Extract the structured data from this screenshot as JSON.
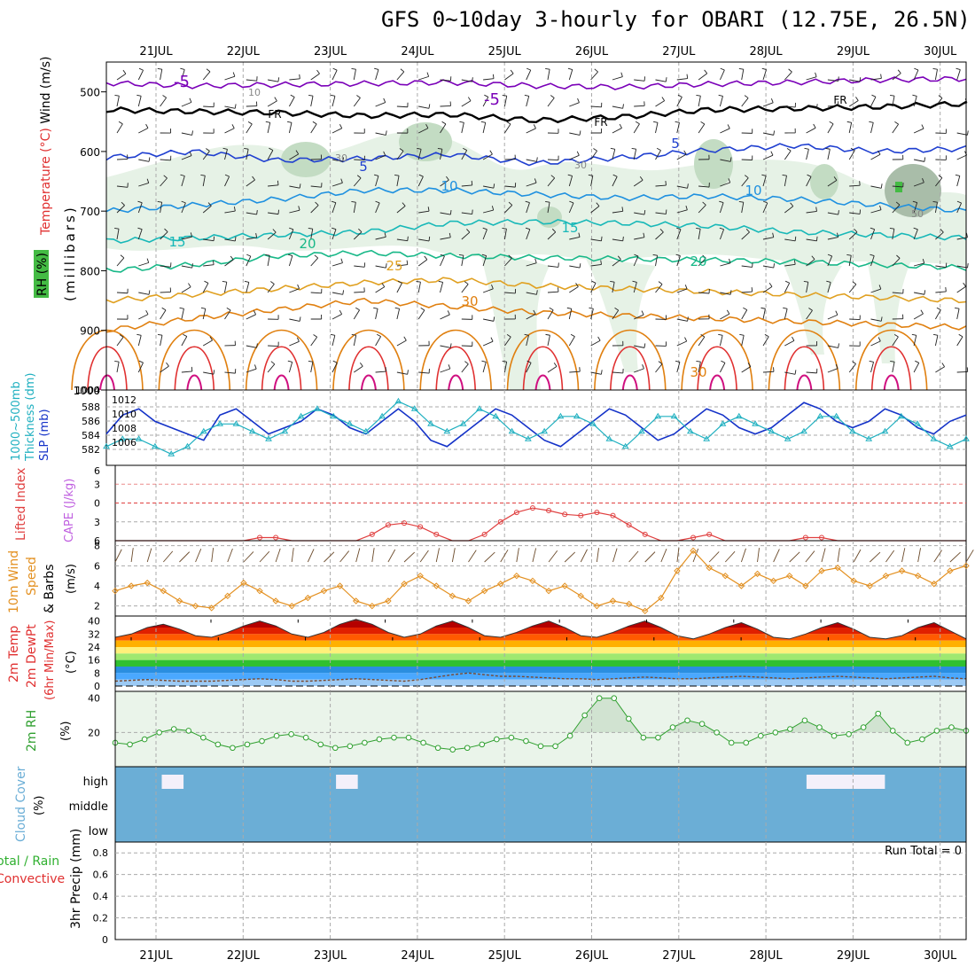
{
  "title": "GFS 0~10day 3-hourly for OBARI (12.75E, 26.5N)",
  "dates": [
    "21JUL",
    "22JUL",
    "23JUL",
    "24JUL",
    "25JUL",
    "26JUL",
    "27JUL",
    "28JUL",
    "29JUL",
    "30JUL"
  ],
  "run_total": "Run Total = 0",
  "colors": {
    "rh_fill_light": "#e6f2e6",
    "rh_fill_mid": "#c3dcc3",
    "rh_fill_dark": "#a9bda9",
    "temp_neg": "#7a00b8",
    "temp_zero": "#000000",
    "temp_5": "#1f3fd0",
    "temp_10": "#1e90e0",
    "temp_15": "#18b8b8",
    "temp_20": "#18b888",
    "temp_25": "#e0a020",
    "temp_30": "#e08010",
    "temp_35": "#e03030",
    "temp_40": "#d01080",
    "slp": "#1432c8",
    "thickness": "#20b0c0",
    "lifted_index": "#e04040",
    "cape": "#c060e0",
    "wind": "#e39020",
    "cloud": "#6baed6",
    "precip_total": "#30b030",
    "precip_conv": "#e03030",
    "rh2m": "#30a030",
    "grid": "#aaaaaa"
  },
  "chart_data": [
    {
      "id": "upper-air",
      "type": "contour",
      "title": "GFS 0~10day 3-hourly for OBARI (12.75E, 26.5N)",
      "ylabel": "(millibars)",
      "side_labels": [
        "Wind (m/s)",
        "Temperature (°C)",
        "RH (%)"
      ],
      "y_ticks": [
        "500",
        "600",
        "700",
        "800",
        "900",
        "1000"
      ],
      "ylim": [
        1000,
        450
      ],
      "temperature_contours": [
        {
          "label": "-5",
          "level_mb": [
            485,
            490,
            488,
            486,
            484,
            490,
            492,
            487,
            484,
            480,
            478
          ]
        },
        {
          "label": "FR",
          "level_mb": [
            530,
            533,
            535,
            540,
            538,
            548,
            542,
            530,
            528,
            525,
            520
          ]
        },
        {
          "label": "5",
          "level_mb": [
            610,
            600,
            615,
            612,
            605,
            620,
            610,
            598,
            590,
            600,
            595
          ]
        },
        {
          "label": "10",
          "level_mb": [
            700,
            690,
            680,
            665,
            665,
            672,
            678,
            675,
            680,
            690,
            700
          ]
        },
        {
          "label": "15",
          "level_mb": [
            750,
            745,
            740,
            735,
            720,
            718,
            720,
            725,
            735,
            740,
            745
          ]
        },
        {
          "label": "20",
          "level_mb": [
            800,
            790,
            775,
            770,
            775,
            778,
            780,
            782,
            785,
            790,
            795
          ]
        },
        {
          "label": "25",
          "level_mb": [
            850,
            840,
            830,
            820,
            815,
            825,
            830,
            835,
            840,
            845,
            850
          ]
        },
        {
          "label": "30",
          "level_mb": [
            900,
            880,
            865,
            850,
            860,
            870,
            875,
            880,
            885,
            890,
            895
          ]
        }
      ],
      "contour_labels": [
        "-5",
        "-5",
        "FR",
        "FR",
        "FR",
        "5",
        "5",
        "10",
        "10",
        "15",
        "15",
        "20",
        "20",
        "25",
        "30",
        "30",
        "10",
        "30",
        "30",
        "50"
      ]
    },
    {
      "id": "slp-thickness",
      "type": "line",
      "left_labels": [
        "1000~500mb",
        "Thickness (dm)"
      ],
      "right_label": "SLP (mb)",
      "y_ticks_left": [
        "588",
        "586",
        "584",
        "582"
      ],
      "y_ticks_right": [
        "1012",
        "1010",
        "1008",
        "1006"
      ],
      "y_top": "1004",
      "series": [
        {
          "name": "SLP (mb)",
          "values": [
            1008,
            1011,
            1012,
            1010,
            1009,
            1008,
            1007,
            1011,
            1012,
            1010,
            1008,
            1009,
            1010,
            1012,
            1011,
            1009,
            1008,
            1010,
            1012,
            1010,
            1007,
            1006,
            1008,
            1010,
            1012,
            1011,
            1009,
            1007,
            1006,
            1008,
            1010,
            1012,
            1011,
            1009,
            1007,
            1008,
            1010,
            1012,
            1011,
            1009,
            1008,
            1009,
            1011,
            1013,
            1012,
            1010,
            1009,
            1010,
            1012,
            1011,
            1009,
            1008,
            1010,
            1011
          ]
        },
        {
          "name": "1000~500mb Thickness (dm)",
          "values": [
            582,
            583,
            583,
            582,
            581,
            582,
            584,
            585,
            585,
            584,
            583,
            584,
            586,
            587,
            586,
            585,
            584,
            586,
            588,
            587,
            585,
            584,
            585,
            587,
            586,
            584,
            583,
            584,
            586,
            586,
            585,
            583,
            582,
            584,
            586,
            586,
            584,
            583,
            585,
            586,
            585,
            584,
            583,
            584,
            586,
            586,
            584,
            583,
            584,
            586,
            585,
            583,
            582,
            583
          ]
        }
      ]
    },
    {
      "id": "stability",
      "type": "line",
      "left_labels": [
        "Lifted Index",
        "CAPE (J/kg)"
      ],
      "y_ticks": [
        "6",
        "3",
        "0",
        "3",
        "6"
      ],
      "series": [
        {
          "name": "Lifted Index",
          "values": [
            6,
            6,
            6,
            6,
            6,
            6,
            6,
            6,
            6,
            5.5,
            5.5,
            6,
            6,
            6,
            6,
            6,
            5,
            3.5,
            3.2,
            3.8,
            5,
            6,
            6,
            5,
            3,
            1.5,
            0.8,
            1.2,
            1.8,
            2,
            1.5,
            2,
            3.5,
            5,
            6,
            6,
            5.5,
            5,
            6,
            6,
            6,
            6,
            6,
            5.5,
            5.5,
            6,
            6,
            6,
            6,
            6,
            6,
            6,
            6,
            6
          ]
        }
      ]
    },
    {
      "id": "wind-10m",
      "type": "line",
      "left_labels": [
        "10m Wind",
        "Speed",
        "& Barbs"
      ],
      "ylabel": "(m/s)",
      "y_ticks": [
        "8",
        "6",
        "4",
        "2"
      ],
      "series": [
        {
          "name": "10m Wind Speed (m/s)",
          "values": [
            3.5,
            4,
            4.3,
            3.5,
            2.5,
            2,
            1.8,
            3,
            4.3,
            3.5,
            2.5,
            2,
            2.8,
            3.5,
            4,
            2.5,
            2,
            2.5,
            4.2,
            5,
            4,
            3,
            2.5,
            3.5,
            4.2,
            5,
            4.5,
            3.5,
            4,
            3,
            2,
            2.5,
            2.2,
            1.5,
            2.8,
            5.5,
            7.5,
            5.8,
            5,
            4,
            5.2,
            4.5,
            5,
            4,
            5.5,
            5.8,
            4.5,
            4,
            5,
            5.5,
            5,
            4.2,
            5.5,
            6
          ]
        }
      ]
    },
    {
      "id": "temp-2m",
      "type": "area",
      "left_labels": [
        "2m Temp",
        "2m DewPt",
        "(6hr Min/Max)"
      ],
      "ylabel": "(°C)",
      "y_ticks": [
        "40",
        "32",
        "24",
        "16",
        "8",
        "0"
      ],
      "series": [
        {
          "name": "2m Temp",
          "values": [
            30,
            32,
            36,
            38,
            35,
            31,
            30,
            33,
            37,
            40,
            37,
            32,
            30,
            33,
            38,
            41,
            38,
            33,
            30,
            32,
            37,
            40,
            36,
            31,
            30,
            33,
            37,
            40,
            36,
            31,
            30,
            33,
            37,
            40,
            36,
            31,
            29,
            32,
            36,
            39,
            35,
            30,
            29,
            32,
            36,
            39,
            35,
            30,
            29,
            31,
            36,
            39,
            34,
            29
          ]
        },
        {
          "name": "2m DewPt",
          "values": [
            3,
            3.5,
            4,
            3.5,
            3,
            3,
            3,
            3.5,
            4,
            4.5,
            4,
            3,
            3,
            3.5,
            4,
            4.5,
            4,
            3.5,
            3,
            4,
            5.5,
            7,
            8,
            7,
            6,
            6,
            5.5,
            5,
            4.5,
            4.5,
            4,
            4.5,
            5,
            5.5,
            5,
            4.5,
            4.5,
            5,
            5.5,
            6,
            5.5,
            5,
            4.5,
            5,
            5.5,
            6,
            5.5,
            5,
            4.5,
            5,
            5.5,
            6,
            5,
            4.5
          ]
        }
      ]
    },
    {
      "id": "rh-2m",
      "type": "area",
      "left_labels": [
        "2m RH"
      ],
      "ylabel": "(%)",
      "y_ticks": [
        "40",
        "20"
      ],
      "series": [
        {
          "name": "2m RH (%)",
          "values": [
            14,
            13,
            16,
            20,
            22,
            21,
            17,
            13,
            11,
            13,
            15,
            18,
            19,
            17,
            13,
            11,
            12,
            14,
            16,
            17,
            17,
            14,
            11,
            10,
            11,
            13,
            16,
            17,
            15,
            12,
            12,
            18,
            30,
            40,
            40,
            28,
            17,
            17,
            23,
            27,
            25,
            20,
            14,
            14,
            18,
            20,
            22,
            27,
            23,
            18,
            19,
            23,
            31,
            21,
            14,
            16,
            21,
            23,
            21
          ]
        }
      ]
    },
    {
      "id": "cloud-cover",
      "type": "bar",
      "left_labels": [
        "Cloud Cover",
        "(%)"
      ],
      "y_ticks": [
        "high",
        "middle",
        "low"
      ],
      "series": [
        {
          "name": "high cloud",
          "blocks": [
            {
              "start_day": 0.3,
              "end_day": 0.55,
              "level": "high"
            },
            {
              "start_day": 2.3,
              "end_day": 2.55,
              "level": "high"
            },
            {
              "start_day": 7.7,
              "end_day": 8.6,
              "level": "high"
            }
          ]
        }
      ]
    },
    {
      "id": "precip",
      "type": "bar",
      "left_labels": [
        "Total / Rain",
        "Convective"
      ],
      "ylabel": "3hr Precip (mm)",
      "y_ticks": [
        "0.8",
        "0.6",
        "0.4",
        "0.2",
        "0"
      ],
      "ylim": [
        0,
        0.9
      ],
      "series": [
        {
          "name": "3hr Precip (mm)",
          "values": []
        }
      ]
    }
  ]
}
